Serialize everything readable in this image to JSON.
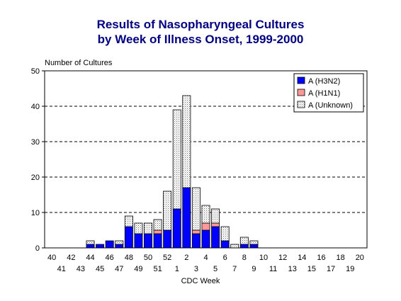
{
  "chart_data": {
    "type": "bar",
    "stacked": true,
    "title_line1": "Results of Nasopharyngeal Cultures",
    "title_line2": "by Week of Illness Onset, 1999-2000",
    "ylabel": "Number of Cultures",
    "xlabel": "CDC Week",
    "ylim": [
      0,
      50
    ],
    "yticks": [
      0,
      10,
      20,
      30,
      40,
      50
    ],
    "grid": "horizontal dashed",
    "legend_position": "top-right",
    "categories": [
      "40",
      "41",
      "42",
      "43",
      "44",
      "45",
      "46",
      "47",
      "48",
      "49",
      "50",
      "51",
      "52",
      "1",
      "2",
      "3",
      "4",
      "5",
      "6",
      "7",
      "8",
      "9",
      "10",
      "11",
      "12",
      "13",
      "14",
      "15",
      "16",
      "17",
      "18",
      "19",
      "20"
    ],
    "series": [
      {
        "name": "A (H3N2)",
        "color": "#0000ff",
        "pattern": "solid",
        "values": [
          0,
          0,
          0,
          0,
          1,
          1,
          2,
          1,
          6,
          4,
          4,
          4,
          5,
          11,
          17,
          4,
          5,
          6,
          2,
          0,
          1,
          1,
          0,
          0,
          0,
          0,
          0,
          0,
          0,
          0,
          0,
          0,
          0
        ]
      },
      {
        "name": "A (H1N1)",
        "color": "#ff9999",
        "pattern": "solid",
        "values": [
          0,
          0,
          0,
          0,
          0,
          0,
          0,
          0,
          0,
          0,
          0,
          1,
          0,
          0,
          0,
          1,
          2,
          1,
          0,
          0,
          0,
          0,
          0,
          0,
          0,
          0,
          0,
          0,
          0,
          0,
          0,
          0,
          0
        ]
      },
      {
        "name": "A (Unknown)",
        "color": "#ffffff",
        "pattern": "dotted",
        "values": [
          0,
          0,
          0,
          0,
          1,
          0,
          0,
          1,
          3,
          3,
          3,
          3,
          11,
          28,
          26,
          12,
          5,
          4,
          4,
          1,
          2,
          1,
          0,
          0,
          0,
          0,
          0,
          0,
          0,
          0,
          0,
          0,
          0
        ]
      }
    ]
  }
}
